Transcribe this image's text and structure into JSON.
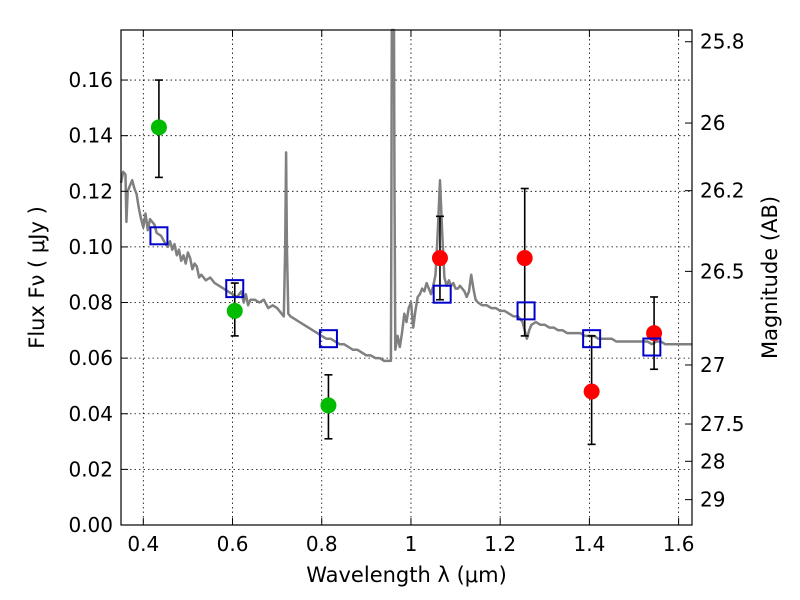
{
  "chart_data": {
    "type": "scatter",
    "xlabel": "Wavelength  λ (μm)",
    "ylabel": "Flux  Fν  ( μJy )",
    "y2label": "Magnitude (AB)",
    "xlim": [
      0.35,
      1.63
    ],
    "ylim": [
      0.0,
      0.178
    ],
    "grid": true,
    "x_ticks": [
      {
        "value": 0.4,
        "label": "0.4"
      },
      {
        "value": 0.6,
        "label": "0.6"
      },
      {
        "value": 0.8,
        "label": "0.8"
      },
      {
        "value": 1.0,
        "label": "1"
      },
      {
        "value": 1.2,
        "label": "1.2"
      },
      {
        "value": 1.4,
        "label": "1.4"
      },
      {
        "value": 1.6,
        "label": "1.6"
      }
    ],
    "y_ticks": [
      {
        "value": 0.0,
        "label": "0.00"
      },
      {
        "value": 0.02,
        "label": "0.02"
      },
      {
        "value": 0.04,
        "label": "0.04"
      },
      {
        "value": 0.06,
        "label": "0.06"
      },
      {
        "value": 0.08,
        "label": "0.08"
      },
      {
        "value": 0.1,
        "label": "0.10"
      },
      {
        "value": 0.12,
        "label": "0.12"
      },
      {
        "value": 0.14,
        "label": "0.14"
      },
      {
        "value": 0.16,
        "label": "0.16"
      }
    ],
    "y2_ticks": [
      {
        "value": 25.8,
        "label": "25.8"
      },
      {
        "value": 26.0,
        "label": "26"
      },
      {
        "value": 26.2,
        "label": "26.2"
      },
      {
        "value": 26.5,
        "label": "26.5"
      },
      {
        "value": 27.0,
        "label": "27"
      },
      {
        "value": 27.5,
        "label": "27.5"
      },
      {
        "value": 28.0,
        "label": "28"
      },
      {
        "value": 29.0,
        "label": "29"
      }
    ],
    "colors": {
      "model_line": "#808080",
      "green_points": "#00bb00",
      "red_points": "#ff0000",
      "model_squares": "#0000cc",
      "error_bars": "#000000"
    },
    "series": [
      {
        "kind": "line",
        "color": "#808080",
        "points": [
          [
            0.35,
            0.123
          ],
          [
            0.355,
            0.127
          ],
          [
            0.36,
            0.126
          ],
          [
            0.362,
            0.109
          ],
          [
            0.365,
            0.12
          ],
          [
            0.37,
            0.122
          ],
          [
            0.375,
            0.124
          ],
          [
            0.38,
            0.121
          ],
          [
            0.385,
            0.119
          ],
          [
            0.39,
            0.114
          ],
          [
            0.395,
            0.11
          ],
          [
            0.4,
            0.107
          ],
          [
            0.405,
            0.112
          ],
          [
            0.41,
            0.106
          ],
          [
            0.415,
            0.11
          ],
          [
            0.42,
            0.109
          ],
          [
            0.425,
            0.108
          ],
          [
            0.43,
            0.105
          ],
          [
            0.44,
            0.104
          ],
          [
            0.45,
            0.101
          ],
          [
            0.455,
            0.1
          ],
          [
            0.46,
            0.102
          ],
          [
            0.465,
            0.099
          ],
          [
            0.47,
            0.101
          ],
          [
            0.475,
            0.097
          ],
          [
            0.48,
            0.099
          ],
          [
            0.485,
            0.095
          ],
          [
            0.49,
            0.097
          ],
          [
            0.495,
            0.094
          ],
          [
            0.5,
            0.098
          ],
          [
            0.505,
            0.096
          ],
          [
            0.51,
            0.092
          ],
          [
            0.515,
            0.094
          ],
          [
            0.52,
            0.093
          ],
          [
            0.525,
            0.089
          ],
          [
            0.53,
            0.09
          ],
          [
            0.54,
            0.088
          ],
          [
            0.55,
            0.089
          ],
          [
            0.56,
            0.087
          ],
          [
            0.57,
            0.086
          ],
          [
            0.58,
            0.085
          ],
          [
            0.59,
            0.084
          ],
          [
            0.6,
            0.083
          ],
          [
            0.61,
            0.082
          ],
          [
            0.62,
            0.084
          ],
          [
            0.625,
            0.08
          ],
          [
            0.63,
            0.083
          ],
          [
            0.635,
            0.079
          ],
          [
            0.64,
            0.081
          ],
          [
            0.65,
            0.081
          ],
          [
            0.66,
            0.08
          ],
          [
            0.67,
            0.081
          ],
          [
            0.68,
            0.078
          ],
          [
            0.69,
            0.079
          ],
          [
            0.7,
            0.078
          ],
          [
            0.705,
            0.077
          ],
          [
            0.71,
            0.076
          ],
          [
            0.715,
            0.075
          ],
          [
            0.718,
            0.1
          ],
          [
            0.72,
            0.134
          ],
          [
            0.722,
            0.1
          ],
          [
            0.725,
            0.076
          ],
          [
            0.73,
            0.075
          ],
          [
            0.74,
            0.074
          ],
          [
            0.75,
            0.073
          ],
          [
            0.76,
            0.072
          ],
          [
            0.77,
            0.071
          ],
          [
            0.78,
            0.07
          ],
          [
            0.79,
            0.069
          ],
          [
            0.8,
            0.068
          ],
          [
            0.81,
            0.067
          ],
          [
            0.82,
            0.067
          ],
          [
            0.83,
            0.066
          ],
          [
            0.84,
            0.065
          ],
          [
            0.85,
            0.065
          ],
          [
            0.86,
            0.064
          ],
          [
            0.87,
            0.063
          ],
          [
            0.88,
            0.063
          ],
          [
            0.89,
            0.062
          ],
          [
            0.9,
            0.061
          ],
          [
            0.91,
            0.061
          ],
          [
            0.92,
            0.06
          ],
          [
            0.93,
            0.06
          ],
          [
            0.94,
            0.059
          ],
          [
            0.95,
            0.059
          ],
          [
            0.955,
            0.059
          ],
          [
            0.956,
            0.1
          ],
          [
            0.957,
            0.178
          ],
          [
            0.962,
            0.178
          ],
          [
            0.963,
            0.12
          ],
          [
            0.965,
            0.063
          ],
          [
            0.97,
            0.068
          ],
          [
            0.975,
            0.064
          ],
          [
            0.98,
            0.069
          ],
          [
            0.985,
            0.076
          ],
          [
            0.99,
            0.073
          ],
          [
            0.995,
            0.078
          ],
          [
            1.0,
            0.08
          ],
          [
            1.005,
            0.071
          ],
          [
            1.01,
            0.077
          ],
          [
            1.015,
            0.082
          ],
          [
            1.02,
            0.083
          ],
          [
            1.025,
            0.085
          ],
          [
            1.03,
            0.084
          ],
          [
            1.035,
            0.087
          ],
          [
            1.04,
            0.085
          ],
          [
            1.045,
            0.083
          ],
          [
            1.05,
            0.086
          ],
          [
            1.055,
            0.09
          ],
          [
            1.06,
            0.105
          ],
          [
            1.065,
            0.124
          ],
          [
            1.07,
            0.105
          ],
          [
            1.075,
            0.089
          ],
          [
            1.08,
            0.086
          ],
          [
            1.085,
            0.088
          ],
          [
            1.09,
            0.086
          ],
          [
            1.095,
            0.087
          ],
          [
            1.1,
            0.085
          ],
          [
            1.105,
            0.085
          ],
          [
            1.11,
            0.086
          ],
          [
            1.12,
            0.084
          ],
          [
            1.125,
            0.082
          ],
          [
            1.13,
            0.084
          ],
          [
            1.135,
            0.09
          ],
          [
            1.14,
            0.085
          ],
          [
            1.145,
            0.081
          ],
          [
            1.15,
            0.08
          ],
          [
            1.16,
            0.079
          ],
          [
            1.17,
            0.079
          ],
          [
            1.18,
            0.078
          ],
          [
            1.19,
            0.078
          ],
          [
            1.2,
            0.077
          ],
          [
            1.21,
            0.077
          ],
          [
            1.22,
            0.076
          ],
          [
            1.23,
            0.075
          ],
          [
            1.24,
            0.075
          ],
          [
            1.245,
            0.074
          ],
          [
            1.25,
            0.073
          ],
          [
            1.255,
            0.07
          ],
          [
            1.26,
            0.067
          ],
          [
            1.265,
            0.07
          ],
          [
            1.27,
            0.072
          ],
          [
            1.28,
            0.073
          ],
          [
            1.29,
            0.072
          ],
          [
            1.3,
            0.072
          ],
          [
            1.31,
            0.071
          ],
          [
            1.32,
            0.071
          ],
          [
            1.33,
            0.07
          ],
          [
            1.34,
            0.07
          ],
          [
            1.35,
            0.069
          ],
          [
            1.36,
            0.069
          ],
          [
            1.37,
            0.069
          ],
          [
            1.38,
            0.069
          ],
          [
            1.39,
            0.068
          ],
          [
            1.4,
            0.068
          ],
          [
            1.41,
            0.068
          ],
          [
            1.42,
            0.067
          ],
          [
            1.43,
            0.067
          ],
          [
            1.44,
            0.067
          ],
          [
            1.45,
            0.067
          ],
          [
            1.46,
            0.066
          ],
          [
            1.47,
            0.066
          ],
          [
            1.48,
            0.066
          ],
          [
            1.49,
            0.066
          ],
          [
            1.5,
            0.066
          ],
          [
            1.51,
            0.066
          ],
          [
            1.52,
            0.066
          ],
          [
            1.53,
            0.066
          ],
          [
            1.54,
            0.065
          ],
          [
            1.55,
            0.066
          ],
          [
            1.56,
            0.066
          ],
          [
            1.57,
            0.065
          ],
          [
            1.58,
            0.065
          ],
          [
            1.59,
            0.065
          ],
          [
            1.6,
            0.065
          ],
          [
            1.61,
            0.065
          ],
          [
            1.62,
            0.065
          ],
          [
            1.63,
            0.065
          ]
        ]
      },
      {
        "kind": "points",
        "color": "#00bb00",
        "points": [
          {
            "x": 0.435,
            "y": 0.143,
            "yerr_lo": 0.125,
            "yerr_hi": 0.16
          },
          {
            "x": 0.605,
            "y": 0.077,
            "yerr_lo": 0.068,
            "yerr_hi": 0.087
          },
          {
            "x": 0.815,
            "y": 0.043,
            "yerr_lo": 0.031,
            "yerr_hi": 0.054
          }
        ]
      },
      {
        "kind": "points",
        "color": "#ff0000",
        "points": [
          {
            "x": 1.065,
            "y": 0.096,
            "yerr_lo": 0.081,
            "yerr_hi": 0.111
          },
          {
            "x": 1.255,
            "y": 0.096,
            "yerr_lo": 0.068,
            "yerr_hi": 0.121
          },
          {
            "x": 1.405,
            "y": 0.048,
            "yerr_lo": 0.029,
            "yerr_hi": 0.068
          },
          {
            "x": 1.545,
            "y": 0.069,
            "yerr_lo": 0.056,
            "yerr_hi": 0.082
          }
        ]
      },
      {
        "kind": "squares",
        "color": "#0000cc",
        "points": [
          {
            "x": 0.435,
            "y": 0.104
          },
          {
            "x": 0.605,
            "y": 0.085
          },
          {
            "x": 0.815,
            "y": 0.067
          },
          {
            "x": 1.07,
            "y": 0.083
          },
          {
            "x": 1.258,
            "y": 0.077
          },
          {
            "x": 1.405,
            "y": 0.067
          },
          {
            "x": 1.54,
            "y": 0.064
          }
        ]
      }
    ]
  }
}
